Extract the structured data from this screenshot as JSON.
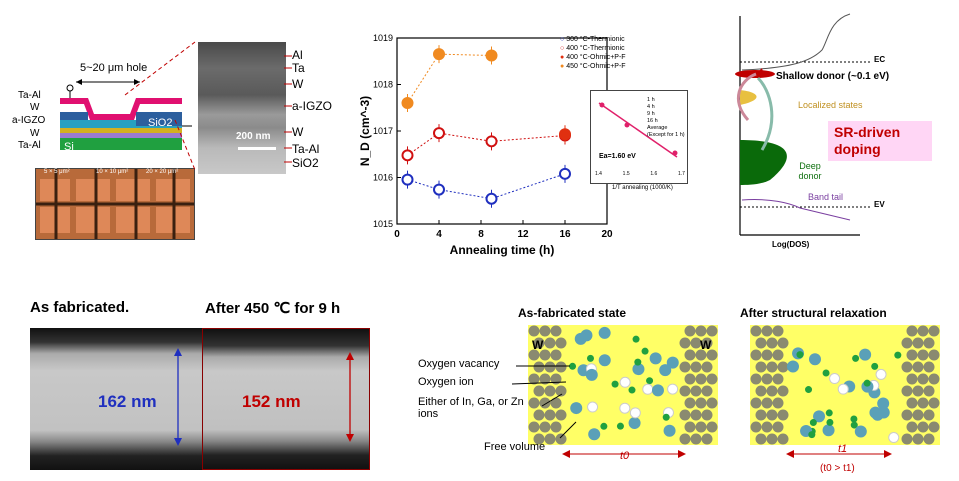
{
  "device": {
    "hole_label": "5~20 μm hole",
    "layers_left": [
      "Ta-Al",
      "W",
      "a-IGZO",
      "W",
      "Ta-Al"
    ],
    "sio2": "SiO2",
    "si": "Si",
    "micro_labels": [
      "5 × 5 μm²",
      "10 × 10 μm²",
      "20 × 20 μm²"
    ]
  },
  "tem_cross": {
    "layers": [
      "Al",
      "Ta",
      "W",
      "a-IGZO",
      "W",
      "Ta-Al",
      "SiO2"
    ],
    "scale": "200 nm"
  },
  "chart_data": {
    "type": "scatter",
    "xlabel": "Annealing time (h)",
    "ylabel": "N_D (cm^-3)",
    "xlim": [
      0,
      20
    ],
    "ylim": [
      1000000000000000.0,
      1e+19
    ],
    "log_y": true,
    "xticks": [
      "0",
      "4",
      "8",
      "12",
      "16",
      "20"
    ],
    "yticks": [
      "10^15",
      "10^16",
      "10^17",
      "10^18",
      "10^19"
    ],
    "x": [
      1,
      4,
      9,
      16
    ],
    "series": [
      {
        "name": "300 °C-Thermionic",
        "color": "#1f2fbf",
        "values": [
          9000000000000000.0,
          5500000000000000.0,
          3500000000000000.0,
          1.2e+16
        ]
      },
      {
        "name": "400 °C-Thermionic",
        "color": "#d01010",
        "values": [
          3e+16,
          9e+16,
          6e+16,
          8e+16
        ]
      },
      {
        "name": "400 °C-Ohmic+P-F",
        "color": "#e03010",
        "values": [
          null,
          null,
          null,
          8.5e+16
        ]
      },
      {
        "name": "450 °C-Ohmic+P-F",
        "color": "#f08a20",
        "values": [
          4e+17,
          4.5e+18,
          4.2e+18,
          null
        ]
      }
    ],
    "inset": {
      "legend": [
        "1 h",
        "4 h",
        "9 h",
        "16 h",
        "Average"
      ],
      "note": "(Except for 1 h)",
      "ea": "Ea=1.60 eV",
      "xlabel": "1/T annealing (1000/K)",
      "xticks": [
        "1.4",
        "1.5",
        "1.6",
        "1.7"
      ]
    }
  },
  "band": {
    "ec": "EC",
    "ev": "EV",
    "shallow": "Shallow donor (~0.1 eV)",
    "localized": "Localized states",
    "deep": "Deep donor",
    "tail": "Band tail",
    "xaxis": "Log(DOS)",
    "sr_box": "SR-driven doping"
  },
  "tem_compare": {
    "left_title": "As fabricated.",
    "right_title": "After 450 ℃ for 9 h",
    "left_thickness": "162 nm",
    "right_thickness": "152 nm"
  },
  "schematic": {
    "left_title": "As-fabricated state",
    "right_title": "After structural relaxation",
    "w": "W",
    "labels": [
      "Oxygen vacancy",
      "Oxygen ion",
      "Either of In, Ga, or Zn ions",
      "Free volume"
    ],
    "t0": "t0",
    "t1": "t1",
    "t_rel": "(t0 > t1)"
  },
  "colors": {
    "blue": "#1f2fbf",
    "red": "#c00000",
    "pinkbox": "#ffd6f5",
    "yellow": "#ffff66"
  }
}
